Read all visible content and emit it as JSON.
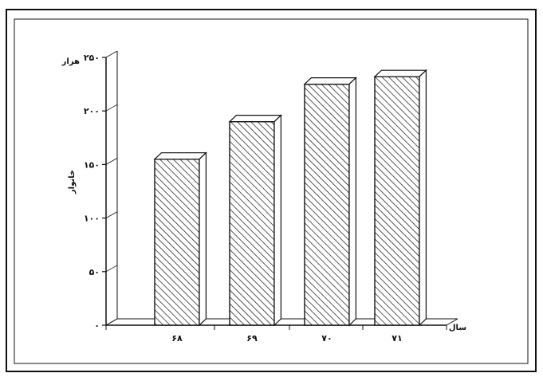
{
  "chart_data": {
    "type": "bar",
    "categories": [
      "۶۸",
      "۶۹",
      "۷۰",
      "۷۱"
    ],
    "values": [
      155,
      190,
      225,
      232
    ],
    "ylim": [
      0,
      250
    ],
    "yticks": [
      0,
      50,
      100,
      150,
      200,
      250
    ],
    "ytick_labels": [
      "۰",
      "۵۰",
      "۱۰۰",
      "۱۵۰",
      "۲۰۰",
      "۲۵۰"
    ],
    "yunit_label": "هزار",
    "ylabel": "خانوار",
    "xlabel": "سال",
    "grid": false,
    "bar_fill": "hatched",
    "colors": {
      "ink": "#111111",
      "background": "#ffffff"
    }
  }
}
